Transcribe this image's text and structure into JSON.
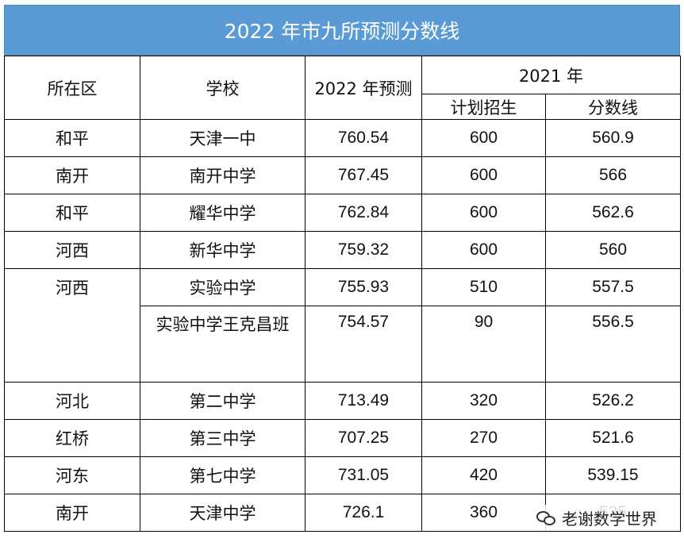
{
  "title": "2022 年市九所预测分数线",
  "headers": {
    "district": "所在区",
    "school": "学校",
    "forecast": "2022 年预测",
    "year2021": "2021 年",
    "plan": "计划招生",
    "score": "分数线"
  },
  "rows": [
    {
      "district": "和平",
      "school": "天津一中",
      "forecast": "760.54",
      "plan": "600",
      "score": "560.9"
    },
    {
      "district": "南开",
      "school": "南开中学",
      "forecast": "767.45",
      "plan": "600",
      "score": "566"
    },
    {
      "district": "和平",
      "school": "耀华中学",
      "forecast": "762.84",
      "plan": "600",
      "score": "562.6"
    },
    {
      "district": "河西",
      "school": "新华中学",
      "forecast": "759.32",
      "plan": "600",
      "score": "560"
    },
    {
      "district": "河西",
      "school": "实验中学",
      "forecast": "755.93",
      "plan": "510",
      "score": "557.5"
    },
    {
      "school": "实验中学王克昌班",
      "forecast": "754.57",
      "plan": "90",
      "score": "556.5"
    },
    {
      "district": "河北",
      "school": "第二中学",
      "forecast": "713.49",
      "plan": "320",
      "score": "526.2"
    },
    {
      "district": "红桥",
      "school": "第三中学",
      "forecast": "707.25",
      "plan": "270",
      "score": "521.6"
    },
    {
      "district": "河东",
      "school": "第七中学",
      "forecast": "731.05",
      "plan": "420",
      "score": "539.15"
    },
    {
      "district": "南开",
      "school": "天津中学",
      "forecast": "726.1",
      "plan": "360",
      "score": "535"
    }
  ],
  "watermark": {
    "text": "老谢数学世界",
    "icon": "wechat-icon"
  }
}
